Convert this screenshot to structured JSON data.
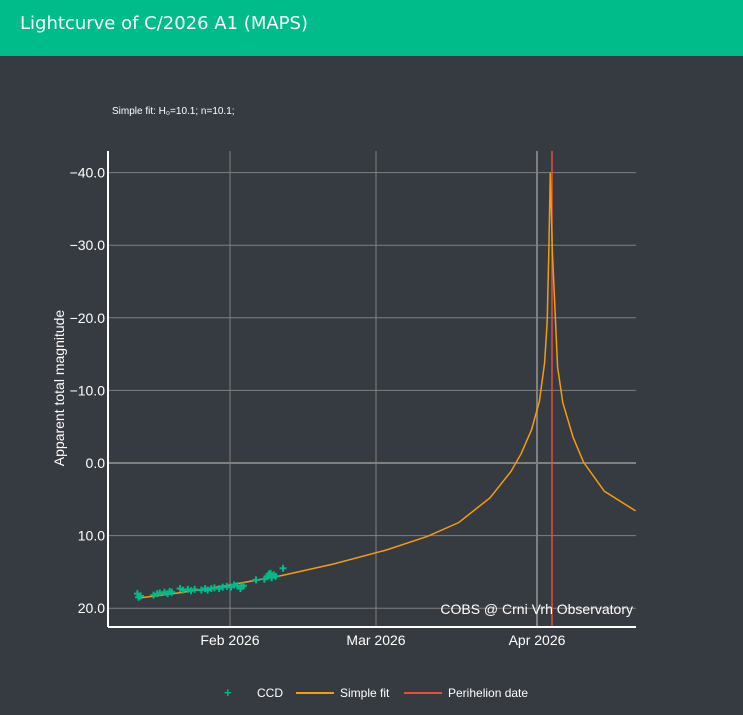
{
  "header": {
    "title": "Lightcurve of C/2026 A1 (MAPS)"
  },
  "colors": {
    "header_bg": "#00bb8a",
    "page_bg": "#363a41",
    "grid": "#808080",
    "ccd": "#00bb8a",
    "fit": "#f39c12",
    "perihelion": "#e74c3c"
  },
  "chart_data": {
    "type": "scatter",
    "title": "Simple fit: H₀=10.1; n=10.1;",
    "xlabel": "",
    "ylabel": "Apparent total magnitude",
    "y_reversed": true,
    "ylim": [
      22.3,
      -43
    ],
    "xlim": [
      "2026-01-08",
      "2026-04-20"
    ],
    "grid": true,
    "y_ticks": [
      -40,
      -30,
      -20,
      -10,
      0,
      10,
      20
    ],
    "y_tick_labels": [
      "−40.0",
      "−30.0",
      "−20.0",
      "−10.0",
      "0.0",
      "10.0",
      "20.0"
    ],
    "x_ticks": [
      "2026-02-01",
      "2026-03-01",
      "2026-04-01"
    ],
    "x_tick_labels": [
      "Feb 2026",
      "Mar 2026",
      "Apr 2026"
    ],
    "annotation": "COBS @ Crni Vrh Observatory",
    "legend_position": "bottom-center",
    "legend": [
      "CCD",
      "Simple fit",
      "Perihelion date"
    ],
    "perihelion_date": "2026-04-04",
    "series": [
      {
        "name": "CCD",
        "kind": "markers",
        "x_days_from_feb1": [
          -17.8,
          -17.6,
          -17.2,
          -14.7,
          -14.0,
          -13.5,
          -12.6,
          -12.0,
          -11.6,
          -11.2,
          -9.6,
          -9.0,
          -8.1,
          -7.5,
          -6.8,
          -5.5,
          -4.8,
          -4.3,
          -3.6,
          -3.0,
          -2.1,
          -1.4,
          -0.6,
          0.2,
          0.8,
          1.4,
          2.0,
          2.2,
          2.6,
          5.0,
          6.6,
          7.2,
          7.5,
          7.8,
          8.0,
          8.4,
          8.8,
          10.2
        ],
        "y": [
          18.0,
          18.5,
          18.3,
          18.2,
          18.0,
          17.9,
          17.8,
          18.0,
          17.7,
          17.8,
          17.3,
          17.5,
          17.4,
          17.6,
          17.4,
          17.5,
          17.3,
          17.5,
          17.3,
          17.2,
          17.3,
          17.1,
          17.0,
          17.1,
          16.8,
          16.9,
          17.3,
          17.0,
          16.9,
          16.1,
          16.0,
          15.6,
          15.3,
          15.2,
          15.8,
          15.4,
          15.6,
          14.5
        ]
      },
      {
        "name": "Simple fit",
        "kind": "line",
        "x_days_from_feb1": [
          -17.5,
          -10,
          0,
          10,
          20,
          30,
          38,
          44,
          50,
          54,
          56,
          58,
          59.5,
          60.5,
          61,
          61.3,
          61.6,
          62,
          63,
          64,
          66,
          68,
          72,
          78
        ],
        "y": [
          18.6,
          17.9,
          16.8,
          15.5,
          13.9,
          12.0,
          10.1,
          8.2,
          4.8,
          1.2,
          -1.3,
          -4.6,
          -8.5,
          -13.8,
          -19.5,
          -29,
          -40,
          -29,
          -13.2,
          -8.3,
          -3.5,
          -0.1,
          3.9,
          6.6
        ]
      }
    ]
  },
  "legend": {
    "ccd": "CCD",
    "fit": "Simple fit",
    "perihelion": "Perihelion date"
  }
}
